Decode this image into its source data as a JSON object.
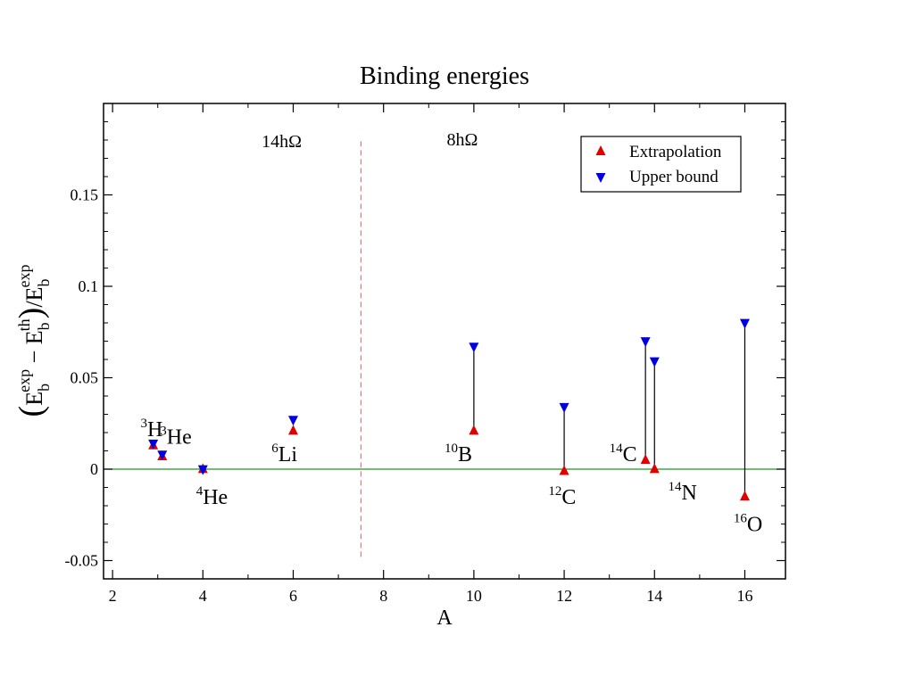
{
  "chart_data": {
    "type": "scatter",
    "title": "Binding energies",
    "xlabel": "A",
    "ylabel": {
      "open_paren": "(",
      "e1": "E",
      "e1_sub": "b",
      "e1_sup": "exp",
      "minus": " − ",
      "e2": "E",
      "e2_sub": "b",
      "e2_sup": "th",
      "close_paren": ")",
      "slash": "/",
      "e3": "E",
      "e3_sub": "b",
      "e3_sup": "exp"
    },
    "xlim": [
      1.8,
      16.9
    ],
    "ylim": [
      -0.06,
      0.2
    ],
    "xticks": [
      2,
      4,
      6,
      8,
      10,
      12,
      14,
      16
    ],
    "xtick_labels": [
      "2",
      "4",
      "6",
      "8",
      "10",
      "12",
      "14",
      "16"
    ],
    "yticks": [
      -0.05,
      0,
      0.05,
      0.1,
      0.15
    ],
    "ytick_labels": [
      "-0.05",
      "0",
      "0.05",
      "0.1",
      "0.15"
    ],
    "series": [
      {
        "name": "Extrapolation",
        "color": "#e00000",
        "marker": "triangle-up",
        "points": [
          {
            "x": 2.9,
            "y": 0.013
          },
          {
            "x": 3.1,
            "y": 0.007
          },
          {
            "x": 4.0,
            "y": 0.0
          },
          {
            "x": 6.0,
            "y": 0.021
          },
          {
            "x": 10.0,
            "y": 0.021
          },
          {
            "x": 12.0,
            "y": -0.001
          },
          {
            "x": 13.8,
            "y": 0.005
          },
          {
            "x": 14.0,
            "y": 0.0
          },
          {
            "x": 16.0,
            "y": -0.015
          }
        ]
      },
      {
        "name": "Upper bound",
        "color": "#0000e0",
        "marker": "triangle-down",
        "points": [
          {
            "x": 2.9,
            "y": 0.014
          },
          {
            "x": 3.1,
            "y": 0.008
          },
          {
            "x": 4.0,
            "y": 0.0
          },
          {
            "x": 6.0,
            "y": 0.027
          },
          {
            "x": 10.0,
            "y": 0.067
          },
          {
            "x": 12.0,
            "y": 0.034
          },
          {
            "x": 13.8,
            "y": 0.07
          },
          {
            "x": 14.0,
            "y": 0.059
          },
          {
            "x": 16.0,
            "y": 0.08
          }
        ]
      }
    ],
    "connectors": [
      {
        "x": 10.0,
        "y1": 0.021,
        "y2": 0.067
      },
      {
        "x": 12.0,
        "y1": -0.001,
        "y2": 0.034
      },
      {
        "x": 13.8,
        "y1": 0.005,
        "y2": 0.07
      },
      {
        "x": 14.0,
        "y1": 0.0,
        "y2": 0.059
      },
      {
        "x": 16.0,
        "y1": -0.015,
        "y2": 0.08
      }
    ],
    "reference_line": {
      "y": 0,
      "color": "#1a9a1a"
    },
    "divider": {
      "x": 7.5,
      "y1": -0.048,
      "y2": 0.181,
      "color": "#d08080"
    },
    "region_labels": [
      {
        "text": "14hΩ",
        "x": 5.3,
        "y": 0.176
      },
      {
        "text": "8hΩ",
        "x": 9.4,
        "y": 0.177
      }
    ],
    "nucleus_labels": [
      {
        "sup": "3",
        "text": "H",
        "x": 2.62,
        "y": 0.018
      },
      {
        "sup": "3",
        "text": "He",
        "x": 3.05,
        "y": 0.014
      },
      {
        "sup": "4",
        "text": "He",
        "x": 3.85,
        "y": -0.019
      },
      {
        "sup": "6",
        "text": "Li",
        "x": 5.52,
        "y": 0.0045
      },
      {
        "sup": "10",
        "text": "B",
        "x": 9.35,
        "y": 0.0045
      },
      {
        "sup": "12",
        "text": "C",
        "x": 11.65,
        "y": -0.019
      },
      {
        "sup": "14",
        "text": "C",
        "x": 13.0,
        "y": 0.0045
      },
      {
        "sup": "14",
        "text": "N",
        "x": 14.3,
        "y": -0.0165
      },
      {
        "sup": "16",
        "text": "O",
        "x": 15.75,
        "y": -0.034
      }
    ],
    "legend": {
      "position": "top-right"
    }
  }
}
